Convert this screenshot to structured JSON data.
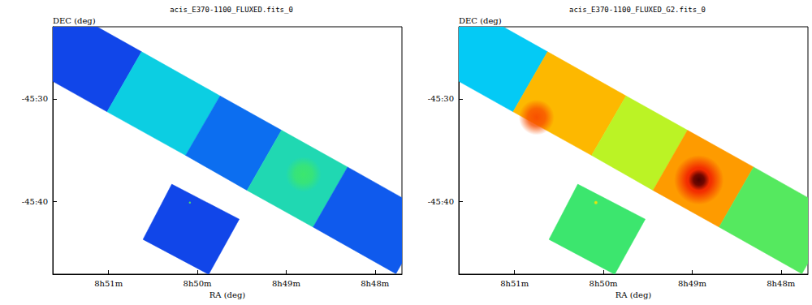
{
  "chart_data": [
    {
      "type": "image",
      "title": "acis_E370-1100_FLUXED.fits_0",
      "xlabel": "RA (deg)",
      "ylabel": "DEC (deg)",
      "xlim": [
        132.907,
        131.924
      ],
      "ylim": [
        -45.7857,
        -45.3823
      ],
      "xticks": [
        {
          "value": 132.75,
          "label": "8h51m"
        },
        {
          "value": 132.5,
          "label": "8h50m"
        },
        {
          "value": 132.25,
          "label": "8h49m"
        },
        {
          "value": 132.0,
          "label": "8h48m"
        }
      ],
      "yticks": [
        {
          "value": -45.5,
          "label": "-45:30"
        },
        {
          "value": -45.66667,
          "label": "-45:40"
        }
      ],
      "grid": false,
      "value_range": [
        0,
        10
      ],
      "regions": [
        {
          "ra": [
            132.988,
            132.754,
            132.657,
            132.891
          ],
          "dec": [
            -45.445,
            -45.521,
            -45.423,
            -45.347
          ],
          "value": 2.2
        },
        {
          "ra": [
            132.754,
            132.533,
            132.436,
            132.657
          ],
          "dec": [
            -45.521,
            -45.592,
            -45.495,
            -45.423
          ],
          "value": 3.8
        },
        {
          "ra": [
            132.533,
            132.36,
            132.263,
            132.436
          ],
          "dec": [
            -45.592,
            -45.649,
            -45.551,
            -45.495
          ],
          "value": 2.6
        },
        {
          "ra": [
            132.36,
            132.174,
            132.077,
            132.263
          ],
          "dec": [
            -45.649,
            -45.709,
            -45.611,
            -45.551
          ],
          "value": 4.3
        },
        {
          "ra": [
            132.174,
            131.941,
            131.844,
            132.077
          ],
          "dec": [
            -45.709,
            -45.785,
            -45.687,
            -45.611
          ],
          "value": 2.4
        },
        {
          "ra": [
            132.572,
            132.382,
            132.468,
            132.653
          ],
          "dec": [
            -45.639,
            -45.696,
            -45.786,
            -45.729
          ],
          "value": 2.2
        }
      ],
      "peaks": [
        {
          "ra": 132.201,
          "dec": -45.623,
          "value": 5.0,
          "radius": 0.05
        },
        {
          "ra": 132.521,
          "dec": -45.669,
          "value": 5.2,
          "radius": 0.004
        }
      ]
    },
    {
      "type": "image",
      "title": "acis_E370-1100_FLUXED_G2.fits_0",
      "xlabel": "RA (deg)",
      "ylabel": "DEC (deg)",
      "xlim": [
        132.907,
        131.924
      ],
      "ylim": [
        -45.7857,
        -45.3823
      ],
      "xticks": [
        {
          "value": 132.75,
          "label": "8h51m"
        },
        {
          "value": 132.5,
          "label": "8h50m"
        },
        {
          "value": 132.25,
          "label": "8h49m"
        },
        {
          "value": 132.0,
          "label": "8h48m"
        }
      ],
      "yticks": [
        {
          "value": -45.5,
          "label": "-45:30"
        },
        {
          "value": -45.66667,
          "label": "-45:40"
        }
      ],
      "grid": false,
      "value_range": [
        0,
        10
      ],
      "regions": [
        {
          "ra": [
            132.988,
            132.754,
            132.657,
            132.891
          ],
          "dec": [
            -45.445,
            -45.521,
            -45.423,
            -45.347
          ],
          "value": 3.6
        },
        {
          "ra": [
            132.754,
            132.533,
            132.436,
            132.657
          ],
          "dec": [
            -45.521,
            -45.592,
            -45.495,
            -45.423
          ],
          "value": 7.4
        },
        {
          "ra": [
            132.533,
            132.36,
            132.263,
            132.436
          ],
          "dec": [
            -45.592,
            -45.649,
            -45.551,
            -45.495
          ],
          "value": 6.0
        },
        {
          "ra": [
            132.36,
            132.174,
            132.077,
            132.263
          ],
          "dec": [
            -45.649,
            -45.709,
            -45.611,
            -45.551
          ],
          "value": 7.8
        },
        {
          "ra": [
            132.174,
            131.941,
            131.844,
            132.077
          ],
          "dec": [
            -45.709,
            -45.785,
            -45.687,
            -45.611
          ],
          "value": 5.2
        },
        {
          "ra": [
            132.572,
            132.382,
            132.468,
            132.653
          ],
          "dec": [
            -45.639,
            -45.696,
            -45.786,
            -45.729
          ],
          "value": 5.0
        }
      ],
      "peaks": [
        {
          "ra": 132.688,
          "dec": -45.53,
          "value": 8.5,
          "radius": 0.05
        },
        {
          "ra": 132.231,
          "dec": -45.632,
          "value": 9.0,
          "radius": 0.07
        },
        {
          "ra": 132.231,
          "dec": -45.632,
          "value": 9.9,
          "radius": 0.03
        },
        {
          "ra": 132.521,
          "dec": -45.669,
          "value": 6.8,
          "radius": 0.006
        }
      ]
    }
  ]
}
